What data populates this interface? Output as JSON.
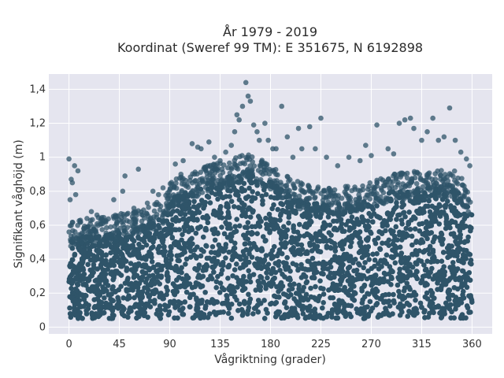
{
  "chart_data": {
    "type": "scatter",
    "title_line1": "År 1979 - 2019",
    "title_line2": "Koordinat (Sweref 99 TM): E 351675, N 6192898",
    "xlabel": "Vågriktning (grader)",
    "ylabel": "Signifikant våghöjd (m)",
    "xlim": [
      -18,
      378
    ],
    "ylim": [
      -0.04,
      1.49
    ],
    "x_ticks": [
      {
        "value": 0,
        "label": "0"
      },
      {
        "value": 45,
        "label": "45"
      },
      {
        "value": 90,
        "label": "90"
      },
      {
        "value": 135,
        "label": "135"
      },
      {
        "value": 180,
        "label": "180"
      },
      {
        "value": 225,
        "label": "225"
      },
      {
        "value": 270,
        "label": "270"
      },
      {
        "value": 315,
        "label": "315"
      },
      {
        "value": 360,
        "label": "360"
      }
    ],
    "y_ticks": [
      {
        "value": 0,
        "label": "0"
      },
      {
        "value": 0.2,
        "label": "0,2"
      },
      {
        "value": 0.4,
        "label": "0,4"
      },
      {
        "value": 0.6,
        "label": "0,6"
      },
      {
        "value": 0.8,
        "label": "0,8"
      },
      {
        "value": 1.0,
        "label": "1"
      },
      {
        "value": 1.2,
        "label": "1,2"
      },
      {
        "value": 1.4,
        "label": "1,4"
      }
    ],
    "grid": true,
    "marker_color": "#2f5469",
    "background_color": "#e5e5ef",
    "dense_band": {
      "x_range": [
        0,
        360
      ],
      "y_min": 0.05,
      "upper_envelope": [
        [
          0,
          0.52
        ],
        [
          30,
          0.55
        ],
        [
          60,
          0.58
        ],
        [
          85,
          0.65
        ],
        [
          90,
          0.75
        ],
        [
          105,
          0.8
        ],
        [
          130,
          0.86
        ],
        [
          160,
          0.92
        ],
        [
          180,
          0.86
        ],
        [
          200,
          0.76
        ],
        [
          230,
          0.72
        ],
        [
          260,
          0.73
        ],
        [
          290,
          0.8
        ],
        [
          320,
          0.82
        ],
        [
          345,
          0.82
        ],
        [
          360,
          0.7
        ]
      ]
    },
    "outliers": [
      [
        0,
        0.99
      ],
      [
        2,
        0.87
      ],
      [
        3,
        0.85
      ],
      [
        5,
        0.95
      ],
      [
        8,
        0.92
      ],
      [
        6,
        0.78
      ],
      [
        1,
        0.75
      ],
      [
        20,
        0.68
      ],
      [
        25,
        0.66
      ],
      [
        30,
        0.63
      ],
      [
        40,
        0.75
      ],
      [
        48,
        0.8
      ],
      [
        50,
        0.89
      ],
      [
        62,
        0.93
      ],
      [
        58,
        0.7
      ],
      [
        70,
        0.73
      ],
      [
        75,
        0.8
      ],
      [
        80,
        0.78
      ],
      [
        84,
        0.82
      ],
      [
        95,
        0.96
      ],
      [
        100,
        0.9
      ],
      [
        102,
        0.98
      ],
      [
        110,
        1.08
      ],
      [
        115,
        1.06
      ],
      [
        118,
        1.05
      ],
      [
        125,
        1.09
      ],
      [
        130,
        1.0
      ],
      [
        135,
        0.98
      ],
      [
        140,
        1.03
      ],
      [
        145,
        1.07
      ],
      [
        148,
        1.15
      ],
      [
        150,
        1.25
      ],
      [
        152,
        1.22
      ],
      [
        155,
        1.3
      ],
      [
        158,
        1.44
      ],
      [
        160,
        1.36
      ],
      [
        162,
        1.33
      ],
      [
        165,
        1.19
      ],
      [
        168,
        1.15
      ],
      [
        170,
        1.1
      ],
      [
        175,
        1.2
      ],
      [
        178,
        1.1
      ],
      [
        182,
        1.05
      ],
      [
        185,
        1.05
      ],
      [
        190,
        1.3
      ],
      [
        195,
        1.12
      ],
      [
        200,
        1.0
      ],
      [
        205,
        1.17
      ],
      [
        208,
        1.05
      ],
      [
        215,
        1.18
      ],
      [
        220,
        1.05
      ],
      [
        225,
        1.23
      ],
      [
        230,
        1.0
      ],
      [
        240,
        0.95
      ],
      [
        250,
        1.0
      ],
      [
        260,
        0.98
      ],
      [
        265,
        1.07
      ],
      [
        270,
        1.01
      ],
      [
        275,
        1.19
      ],
      [
        285,
        1.05
      ],
      [
        290,
        1.02
      ],
      [
        295,
        1.2
      ],
      [
        300,
        1.22
      ],
      [
        305,
        1.23
      ],
      [
        308,
        1.17
      ],
      [
        315,
        1.1
      ],
      [
        320,
        1.15
      ],
      [
        325,
        1.23
      ],
      [
        330,
        1.1
      ],
      [
        335,
        1.12
      ],
      [
        340,
        1.29
      ],
      [
        345,
        1.1
      ],
      [
        350,
        1.03
      ],
      [
        355,
        0.99
      ],
      [
        358,
        0.95
      ]
    ]
  }
}
